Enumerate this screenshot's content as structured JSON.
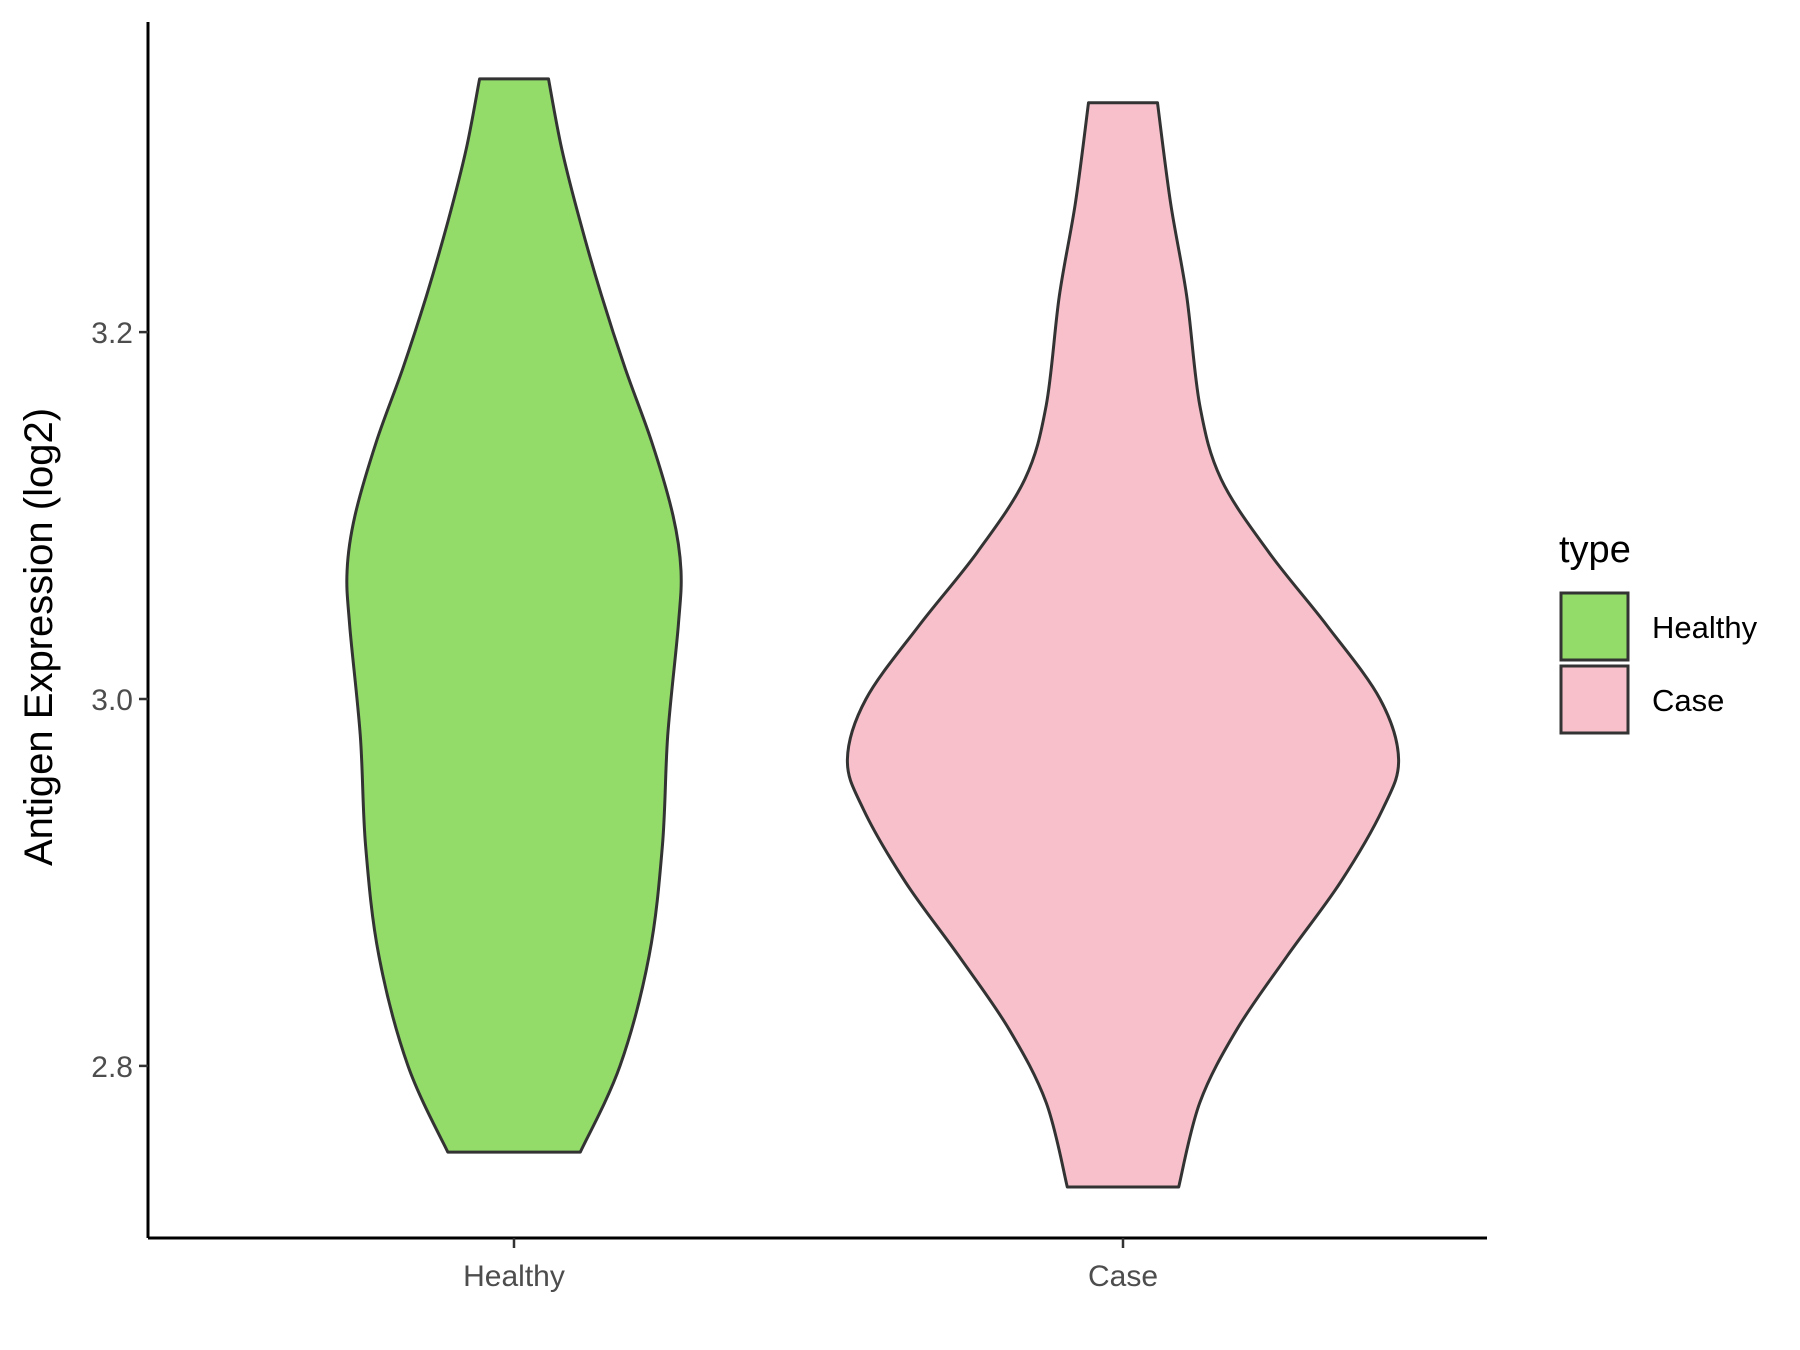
{
  "chart_data": {
    "type": "violin",
    "title": "",
    "xlabel": "",
    "ylabel": "Antigen Expression (log2)",
    "ylim": [
      2.7,
      3.37
    ],
    "y_ticks": [
      2.8,
      3.0,
      3.2
    ],
    "y_tick_labels": [
      "2.8",
      "3.0",
      "3.2"
    ],
    "categories": [
      "Healthy",
      "Case"
    ],
    "legend": {
      "title": "type",
      "position": "right",
      "entries": [
        "Healthy",
        "Case"
      ]
    },
    "grid": false,
    "series": [
      {
        "name": "Healthy",
        "color": "#93DC6A",
        "min": 2.753,
        "max": 3.338,
        "profile": [
          {
            "y": 2.753,
            "w": 0.25
          },
          {
            "y": 2.8,
            "w": 0.4
          },
          {
            "y": 2.86,
            "w": 0.51
          },
          {
            "y": 2.92,
            "w": 0.56
          },
          {
            "y": 2.98,
            "w": 0.58
          },
          {
            "y": 3.04,
            "w": 0.62
          },
          {
            "y": 3.07,
            "w": 0.63
          },
          {
            "y": 3.1,
            "w": 0.6
          },
          {
            "y": 3.14,
            "w": 0.52
          },
          {
            "y": 3.18,
            "w": 0.42
          },
          {
            "y": 3.22,
            "w": 0.33
          },
          {
            "y": 3.26,
            "w": 0.25
          },
          {
            "y": 3.3,
            "w": 0.18
          },
          {
            "y": 3.338,
            "w": 0.13
          }
        ]
      },
      {
        "name": "Case",
        "color": "#F7C0CB",
        "min": 2.734,
        "max": 3.325,
        "profile": [
          {
            "y": 2.734,
            "w": 0.21
          },
          {
            "y": 2.78,
            "w": 0.29
          },
          {
            "y": 2.82,
            "w": 0.43
          },
          {
            "y": 2.86,
            "w": 0.62
          },
          {
            "y": 2.9,
            "w": 0.82
          },
          {
            "y": 2.94,
            "w": 0.98
          },
          {
            "y": 2.967,
            "w": 1.04
          },
          {
            "y": 3.0,
            "w": 0.97
          },
          {
            "y": 3.04,
            "w": 0.77
          },
          {
            "y": 3.08,
            "w": 0.55
          },
          {
            "y": 3.12,
            "w": 0.37
          },
          {
            "y": 3.16,
            "w": 0.29
          },
          {
            "y": 3.22,
            "w": 0.24
          },
          {
            "y": 3.27,
            "w": 0.18
          },
          {
            "y": 3.325,
            "w": 0.13
          }
        ]
      }
    ]
  }
}
